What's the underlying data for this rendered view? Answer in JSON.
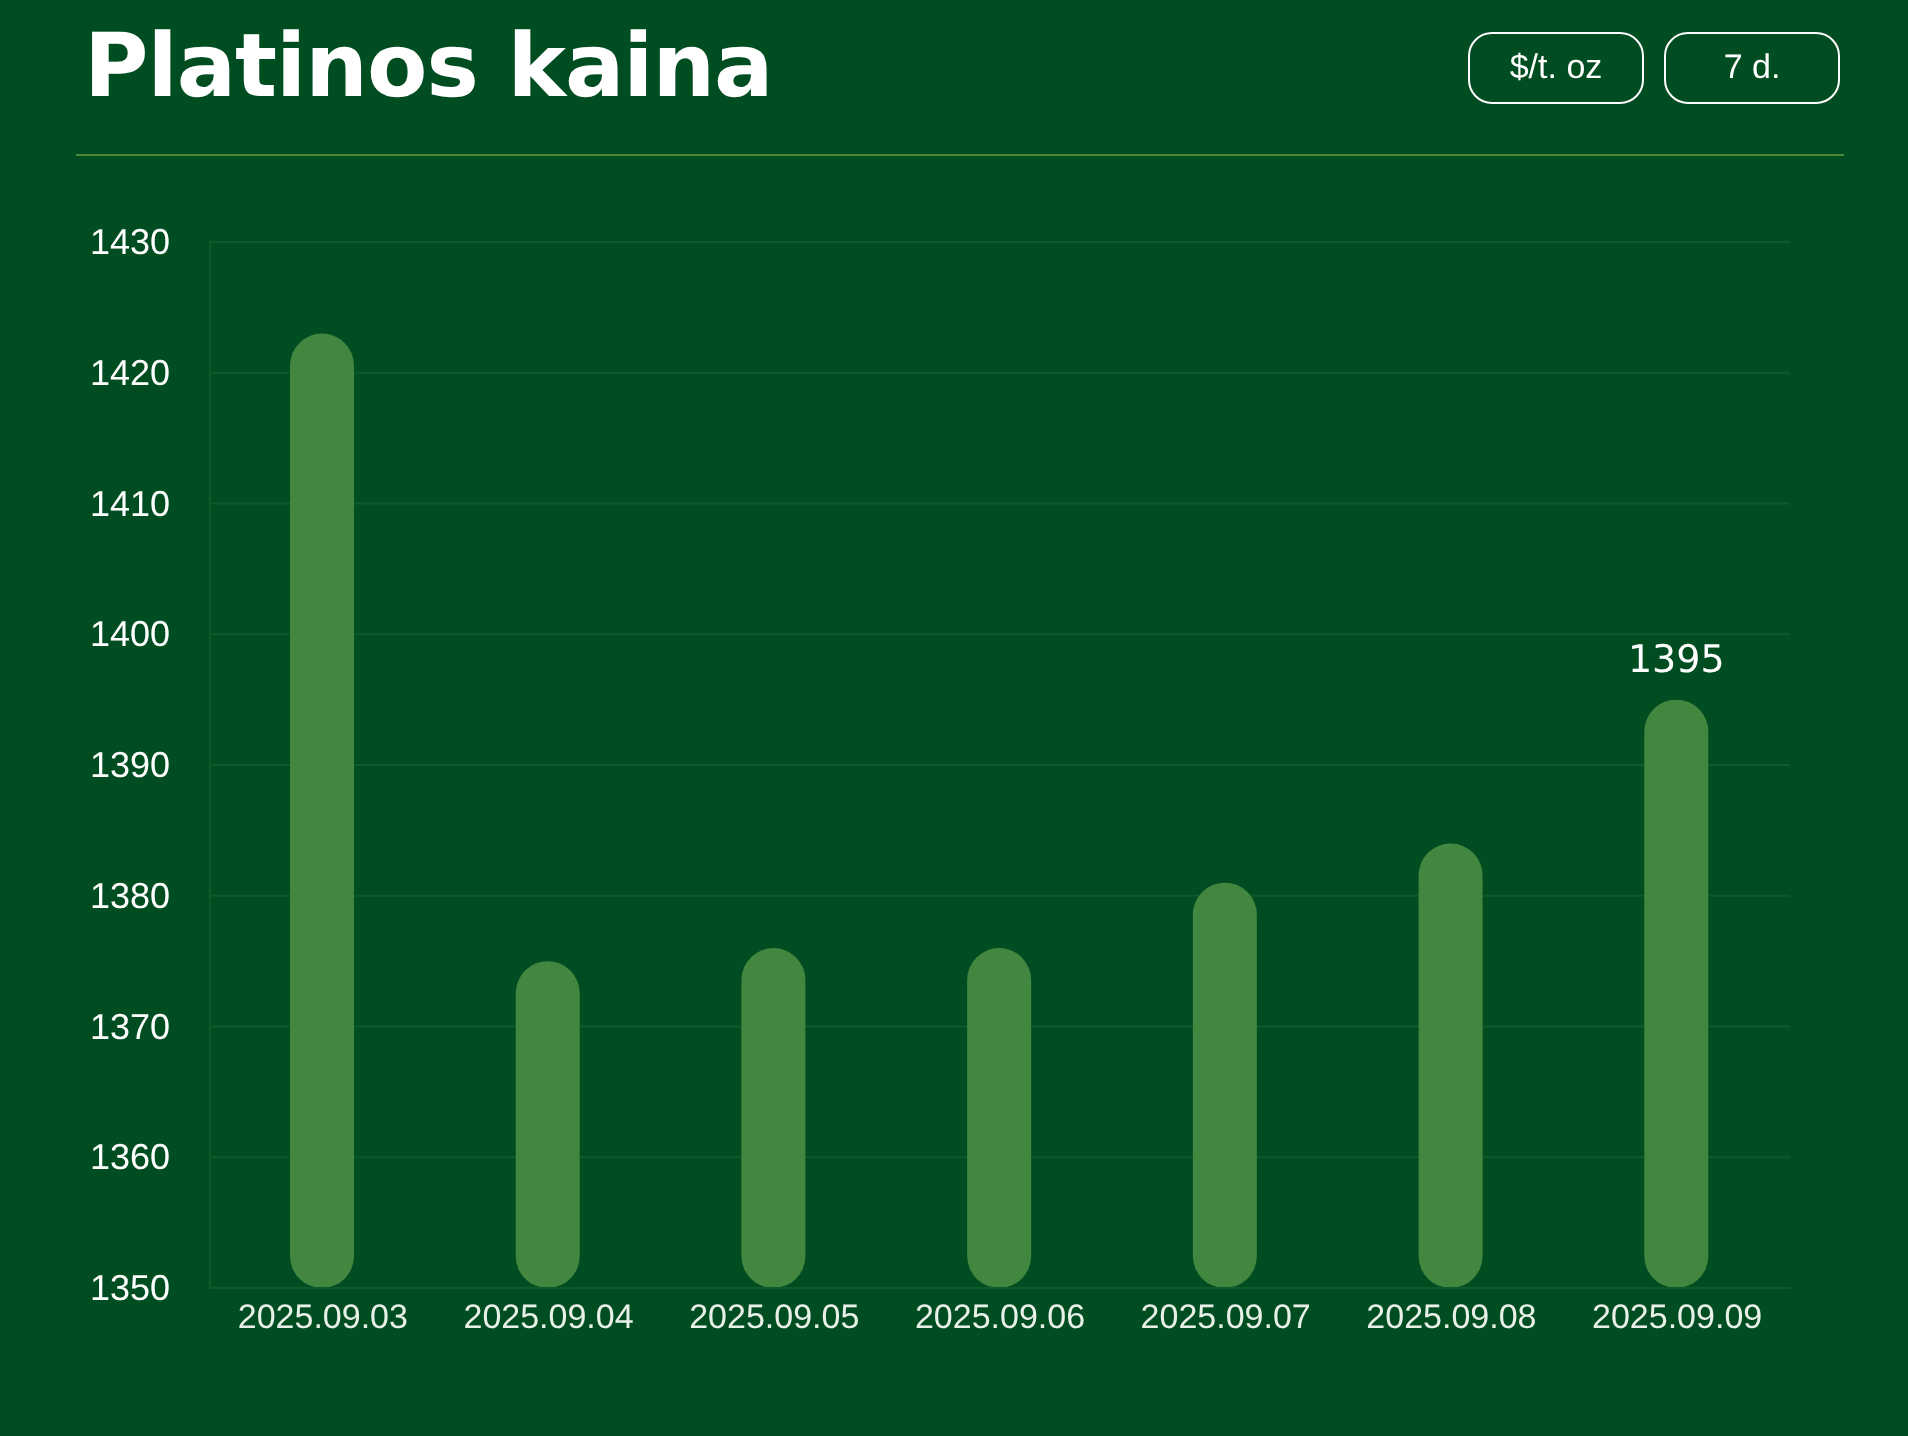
{
  "chart_data": {
    "type": "bar",
    "title": "Platinos kaina",
    "annotations": [
      "$/t. oz",
      "7 d."
    ],
    "categories": [
      "2025.09.03",
      "2025.09.04",
      "2025.09.05",
      "2025.09.06",
      "2025.09.07",
      "2025.09.08",
      "2025.09.09"
    ],
    "values": [
      1423,
      1375,
      1376,
      1376,
      1381,
      1384,
      1395
    ],
    "value_labels": [
      null,
      null,
      null,
      null,
      null,
      null,
      "1395"
    ],
    "color": "#43863f",
    "ylim": [
      1350,
      1430
    ],
    "yticks": [
      1350,
      1360,
      1370,
      1380,
      1390,
      1400,
      1410,
      1420,
      1430
    ],
    "grid": "y",
    "legend": false
  }
}
